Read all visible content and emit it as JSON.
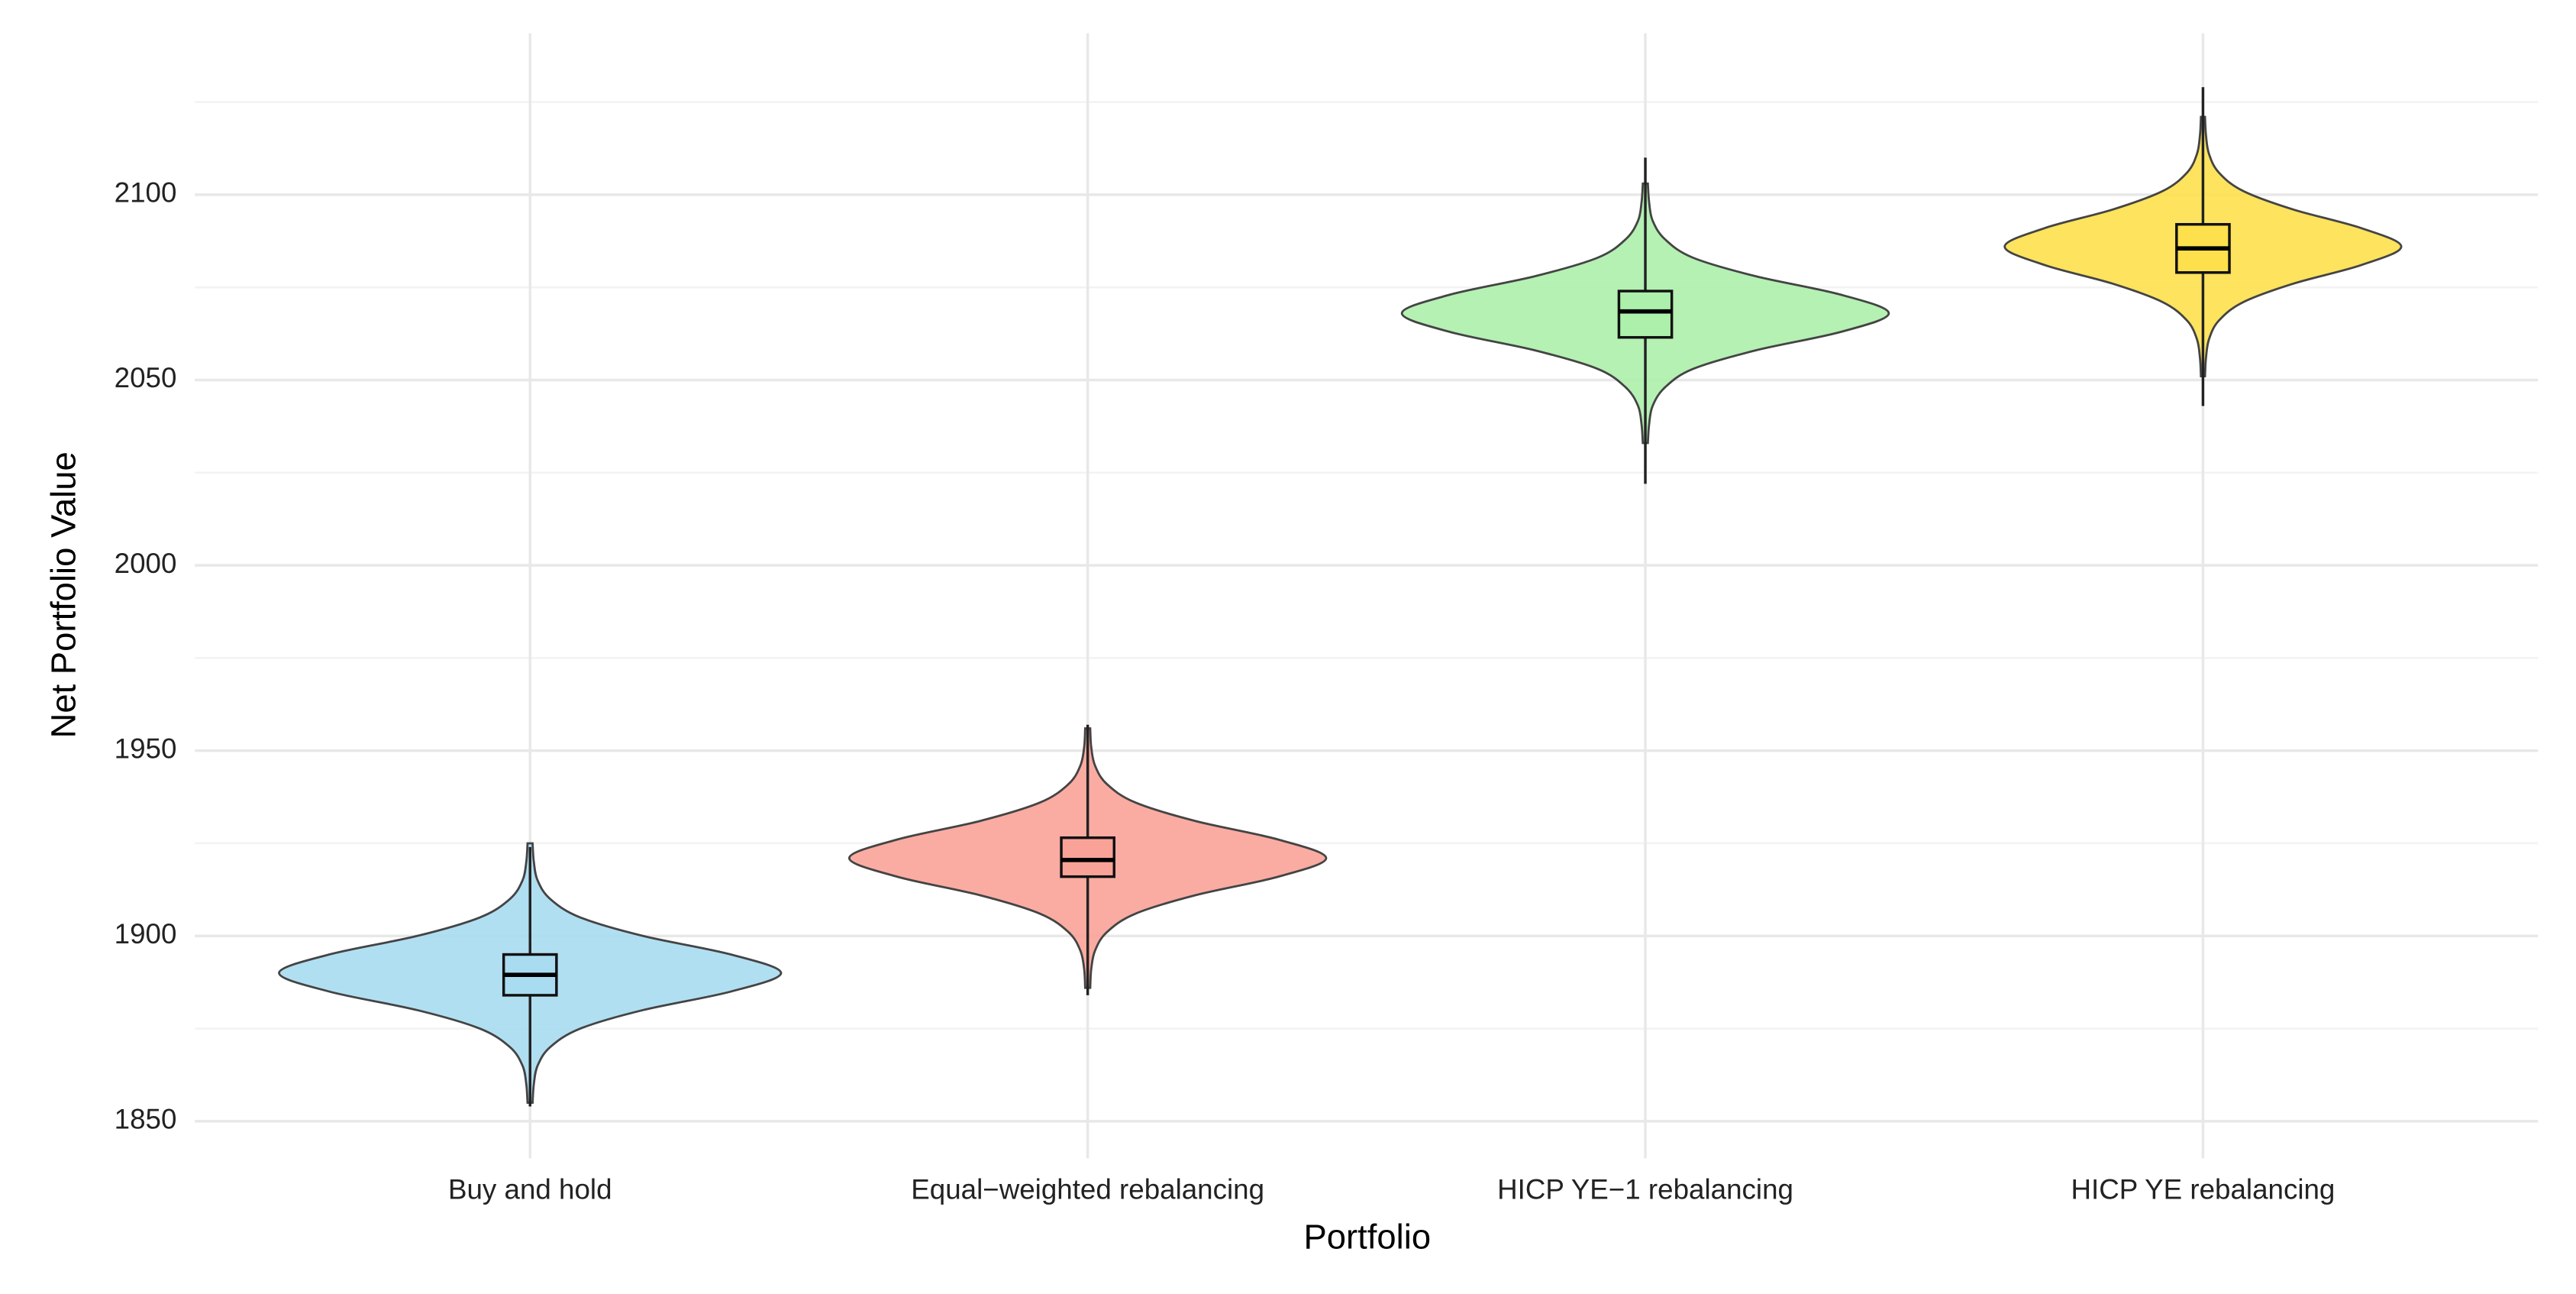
{
  "chart_data": {
    "type": "violin",
    "x_label": "Portfolio",
    "y_label": "Net Portfolio Value",
    "categories": [
      "Buy and hold",
      "Equal−weighted rebalancing",
      "HICP YE−1 rebalancing",
      "HICP YE rebalancing"
    ],
    "violins": [
      {
        "color": "#a9dcf1",
        "min": 1854,
        "q1": 1884,
        "median": 1889.5,
        "q3": 1895,
        "max": 1924,
        "density_y": [
          1855,
          1860,
          1865,
          1870,
          1875,
          1880,
          1885,
          1890,
          1895,
          1900,
          1905,
          1910,
          1915,
          1920,
          1925
        ],
        "density": [
          0.01,
          0.015,
          0.03,
          0.08,
          0.2,
          0.45,
          0.8,
          1,
          0.8,
          0.45,
          0.2,
          0.08,
          0.03,
          0.015,
          0.01
        ]
      },
      {
        "color": "#f9a398",
        "min": 1884,
        "q1": 1916,
        "median": 1920.5,
        "q3": 1926.5,
        "max": 1957,
        "density_y": [
          1886,
          1891,
          1896,
          1901,
          1906,
          1911,
          1916,
          1921,
          1926,
          1931,
          1936,
          1941,
          1946,
          1951,
          1956
        ],
        "density": [
          0.01,
          0.014,
          0.029,
          0.076,
          0.19,
          0.43,
          0.76,
          0.95,
          0.76,
          0.43,
          0.19,
          0.076,
          0.029,
          0.014,
          0.01
        ]
      },
      {
        "color": "#acf0ab",
        "min": 2022,
        "q1": 2061.5,
        "median": 2068.5,
        "q3": 2074,
        "max": 2110,
        "density_y": [
          2033,
          2038,
          2043,
          2048,
          2053,
          2058,
          2063,
          2068,
          2073,
          2078,
          2083,
          2088,
          2093,
          2098,
          2103
        ],
        "density": [
          0.01,
          0.015,
          0.029,
          0.078,
          0.19,
          0.44,
          0.78,
          0.97,
          0.78,
          0.44,
          0.19,
          0.078,
          0.029,
          0.015,
          0.01
        ]
      },
      {
        "color": "#fde04c",
        "min": 2043,
        "q1": 2079,
        "median": 2085.5,
        "q3": 2092,
        "max": 2129,
        "density_y": [
          2051,
          2056,
          2061,
          2066,
          2071,
          2076,
          2081,
          2086,
          2091,
          2096,
          2101,
          2106,
          2111,
          2116,
          2121
        ],
        "density": [
          0.008,
          0.012,
          0.024,
          0.063,
          0.16,
          0.36,
          0.63,
          0.79,
          0.63,
          0.36,
          0.16,
          0.063,
          0.024,
          0.012,
          0.008
        ]
      }
    ],
    "ylim": [
      1840,
      2140
    ],
    "yticks": [
      1850,
      1900,
      1950,
      2000,
      2050,
      2100
    ],
    "grid": true,
    "minor_grid": true
  }
}
